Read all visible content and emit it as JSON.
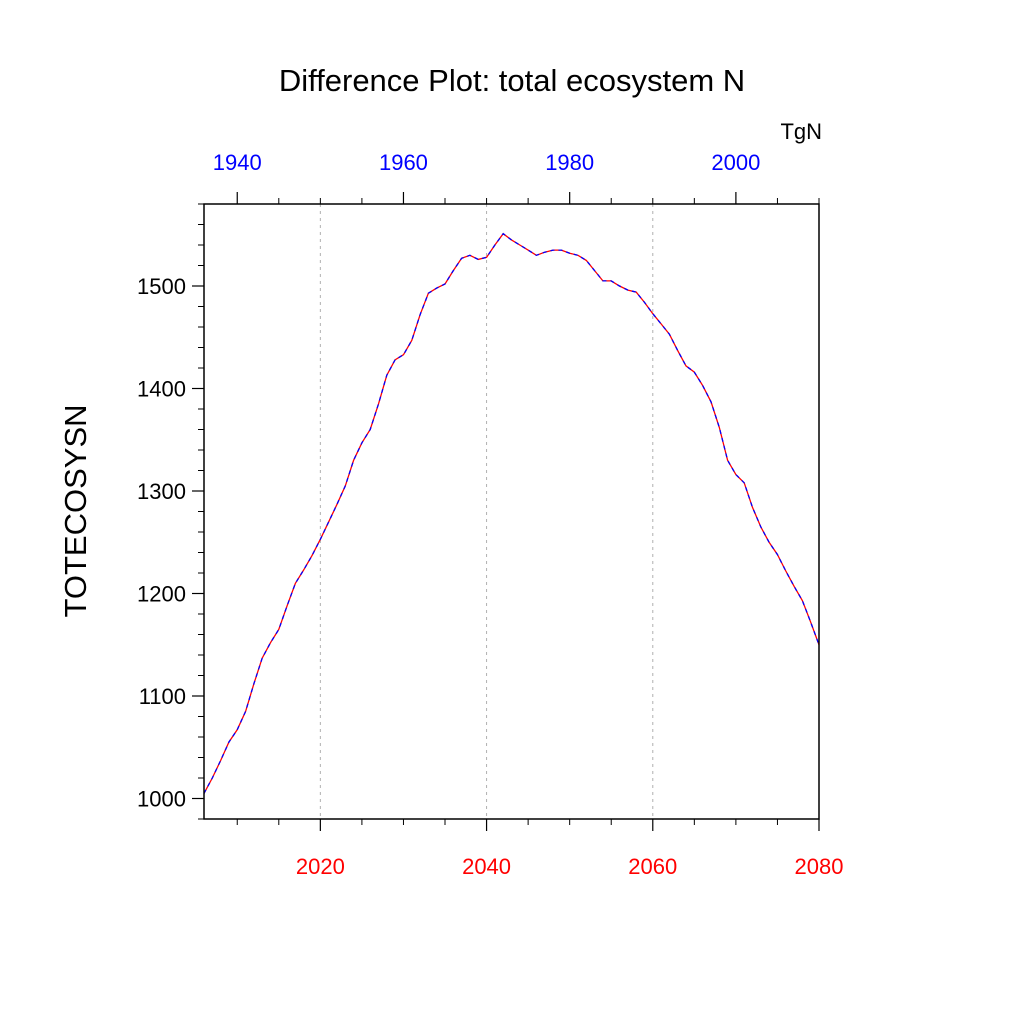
{
  "chart_data": {
    "type": "line",
    "title": "Difference Plot: total ecosystem N",
    "units": "TgN",
    "ylabel": "TOTECOSYSN",
    "xlabel": "",
    "ylim": [
      980,
      1580
    ],
    "yticks": [
      1000,
      1100,
      1200,
      1300,
      1400,
      1500
    ],
    "bottom_axis": {
      "color": "#ff0000",
      "range": [
        2006,
        2080
      ],
      "ticks": [
        2020,
        2040,
        2060,
        2080
      ],
      "tick_labels": [
        "2020",
        "2040",
        "2060",
        "2080"
      ]
    },
    "top_axis": {
      "color": "#0000ff",
      "range": [
        1936,
        2010
      ],
      "ticks": [
        1940,
        1960,
        1980,
        2000
      ],
      "tick_labels": [
        "1940",
        "1960",
        "1980",
        "2000"
      ]
    },
    "grid": "vertical dotted at major bottom ticks",
    "series": [
      {
        "color_solid": "#ff0000",
        "color_dash": "#0000ff",
        "x": [
          2006,
          2007,
          2008,
          2009,
          2010,
          2011,
          2012,
          2013,
          2014,
          2015,
          2016,
          2017,
          2018,
          2019,
          2020,
          2021,
          2022,
          2023,
          2024,
          2025,
          2026,
          2027,
          2028,
          2029,
          2030,
          2031,
          2032,
          2033,
          2034,
          2035,
          2036,
          2037,
          2038,
          2039,
          2040,
          2041,
          2042,
          2043,
          2044,
          2045,
          2046,
          2047,
          2048,
          2049,
          2050,
          2051,
          2052,
          2053,
          2054,
          2055,
          2056,
          2057,
          2058,
          2059,
          2060,
          2061,
          2062,
          2063,
          2064,
          2065,
          2066,
          2067,
          2068,
          2069,
          2070,
          2071,
          2072,
          2073,
          2074,
          2075,
          2076,
          2077,
          2078,
          2079,
          2080
        ],
        "y": [
          1005,
          1020,
          1037,
          1055,
          1067,
          1085,
          1112,
          1137,
          1152,
          1165,
          1188,
          1210,
          1223,
          1237,
          1253,
          1270,
          1287,
          1305,
          1330,
          1347,
          1360,
          1385,
          1413,
          1428,
          1433,
          1447,
          1472,
          1493,
          1498,
          1502,
          1515,
          1527,
          1530,
          1526,
          1528,
          1540,
          1551,
          1545,
          1540,
          1535,
          1530,
          1533,
          1535,
          1535,
          1532,
          1530,
          1525,
          1515,
          1505,
          1505,
          1500,
          1496,
          1494,
          1484,
          1473,
          1463,
          1453,
          1437,
          1422,
          1416,
          1403,
          1387,
          1362,
          1330,
          1316,
          1308,
          1284,
          1265,
          1250,
          1238,
          1222,
          1207,
          1193,
          1172,
          1150
        ]
      }
    ]
  }
}
